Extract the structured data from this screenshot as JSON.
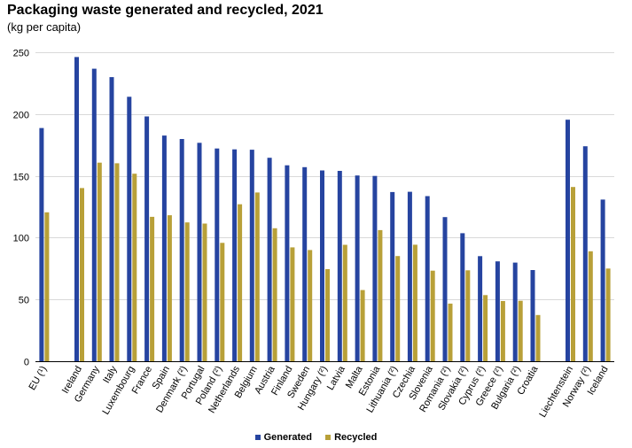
{
  "title": "Packaging waste generated and recycled, 2021",
  "subtitle": "(kg per capita)",
  "chart_data": {
    "type": "bar",
    "title": "Packaging waste generated and recycled, 2021",
    "subtitle": "(kg per capita)",
    "xlabel": "",
    "ylabel": "",
    "ylim": [
      0,
      250
    ],
    "yticks": [
      0,
      50,
      100,
      150,
      200,
      250
    ],
    "grid": true,
    "legend_position": "bottom",
    "categories": [
      "EU (¹)",
      "",
      "Ireland",
      "Germany",
      "Italy",
      "Luxembourg",
      "France",
      "Spain",
      "Denmark (²)",
      "Portugal",
      "Poland (²)",
      "Netherlands",
      "Belgium",
      "Austria",
      "Finland",
      "Sweden",
      "Hungary (²)",
      "Latvia",
      "Malta",
      "Estonia",
      "Lithuania (²)",
      "Czechia",
      "Slovenia",
      "Romania (²)",
      "Slovakia (²)",
      "Cyprus (²)",
      "Greece (²)",
      "Bulgaria (²)",
      "Croatia",
      "",
      "Liechtenstein",
      "Norway (²)",
      "Iceland"
    ],
    "series": [
      {
        "name": "Generated",
        "color": "#2644a0",
        "values": [
          188.7,
          null,
          246.1,
          236.7,
          229.9,
          214.0,
          198.1,
          182.6,
          179.8,
          176.7,
          172.1,
          171.4,
          171.1,
          164.6,
          158.5,
          157.0,
          154.4,
          154.0,
          150.3,
          149.9,
          136.9,
          137.1,
          133.6,
          116.6,
          103.6,
          85.0,
          80.8,
          79.8,
          73.8,
          null,
          195.4,
          173.9,
          130.8
        ]
      },
      {
        "name": "Recycled",
        "color": "#b8a038",
        "values": [
          120.5,
          null,
          140.1,
          160.7,
          160.2,
          151.7,
          116.8,
          118.1,
          112.3,
          111.4,
          95.8,
          127.0,
          136.5,
          107.6,
          92.1,
          90.0,
          74.5,
          94.2,
          57.6,
          106.1,
          85.1,
          94.3,
          73.3,
          46.6,
          73.6,
          53.5,
          48.7,
          48.9,
          37.4,
          null,
          141.0,
          89.0,
          75.0
        ]
      }
    ]
  }
}
